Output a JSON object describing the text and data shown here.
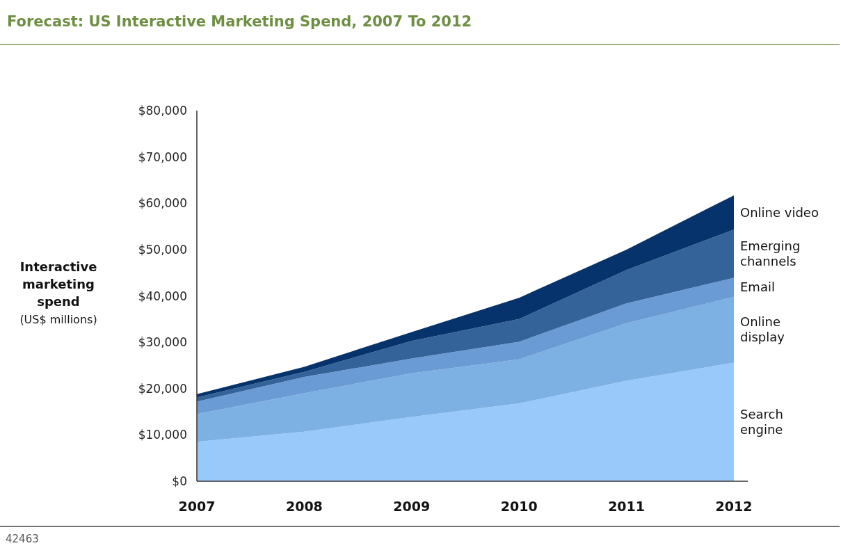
{
  "chart_data": {
    "type": "area",
    "stacked": true,
    "title": "Forecast: US Interactive Marketing Spend, 2007 To 2012",
    "ylabel": "Interactive\nmarketing\nspend\n(US$ millions)",
    "categories": [
      "2007",
      "2008",
      "2009",
      "2010",
      "2011",
      "2012"
    ],
    "series": [
      {
        "name": "Search engine",
        "color": "#99c9fb",
        "values": [
          8500,
          10700,
          13900,
          16800,
          21700,
          25600
        ]
      },
      {
        "name": "Online display",
        "color": "#7db0e3",
        "values": [
          6000,
          8300,
          9400,
          9500,
          12400,
          14200
        ]
      },
      {
        "name": "Email",
        "color": "#6a9bd4",
        "values": [
          2700,
          3500,
          3200,
          3800,
          4300,
          4100
        ]
      },
      {
        "name": "Emerging channels",
        "color": "#336399",
        "values": [
          900,
          1100,
          3800,
          4900,
          7200,
          10400
        ]
      },
      {
        "name": "Online video",
        "color": "#06336b",
        "values": [
          700,
          1100,
          1900,
          4600,
          4400,
          7400
        ]
      }
    ],
    "ylim": [
      0,
      80000
    ],
    "yticks": [
      {
        "value": 0,
        "label": "$0"
      },
      {
        "value": 10000,
        "label": "$10,000"
      },
      {
        "value": 20000,
        "label": "$20,000"
      },
      {
        "value": 30000,
        "label": "$30,000"
      },
      {
        "value": 40000,
        "label": "$40,000"
      },
      {
        "value": 50000,
        "label": "$50,000"
      },
      {
        "value": 60000,
        "label": "$60,000"
      },
      {
        "value": 70000,
        "label": "$70,000"
      },
      {
        "value": 80000,
        "label": "$80,000"
      }
    ],
    "grid": false,
    "legend": "right",
    "annotations": [
      "42463"
    ]
  }
}
